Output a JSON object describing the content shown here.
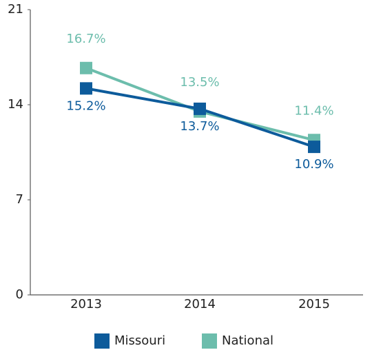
{
  "chart_data": {
    "type": "line",
    "categories": [
      "2013",
      "2014",
      "2015"
    ],
    "series": [
      {
        "name": "Missouri",
        "color": "#0d5b9b",
        "values": [
          15.2,
          13.7,
          10.9
        ],
        "value_labels": [
          "15.2%",
          "13.7%",
          "10.9%"
        ]
      },
      {
        "name": "National",
        "color": "#6cbdac",
        "values": [
          16.7,
          13.5,
          11.4
        ],
        "value_labels": [
          "16.7%",
          "13.5%",
          "11.4%"
        ]
      }
    ],
    "ylim": [
      0,
      21
    ],
    "yticks": [
      0,
      7,
      14,
      21
    ],
    "grid": false
  }
}
